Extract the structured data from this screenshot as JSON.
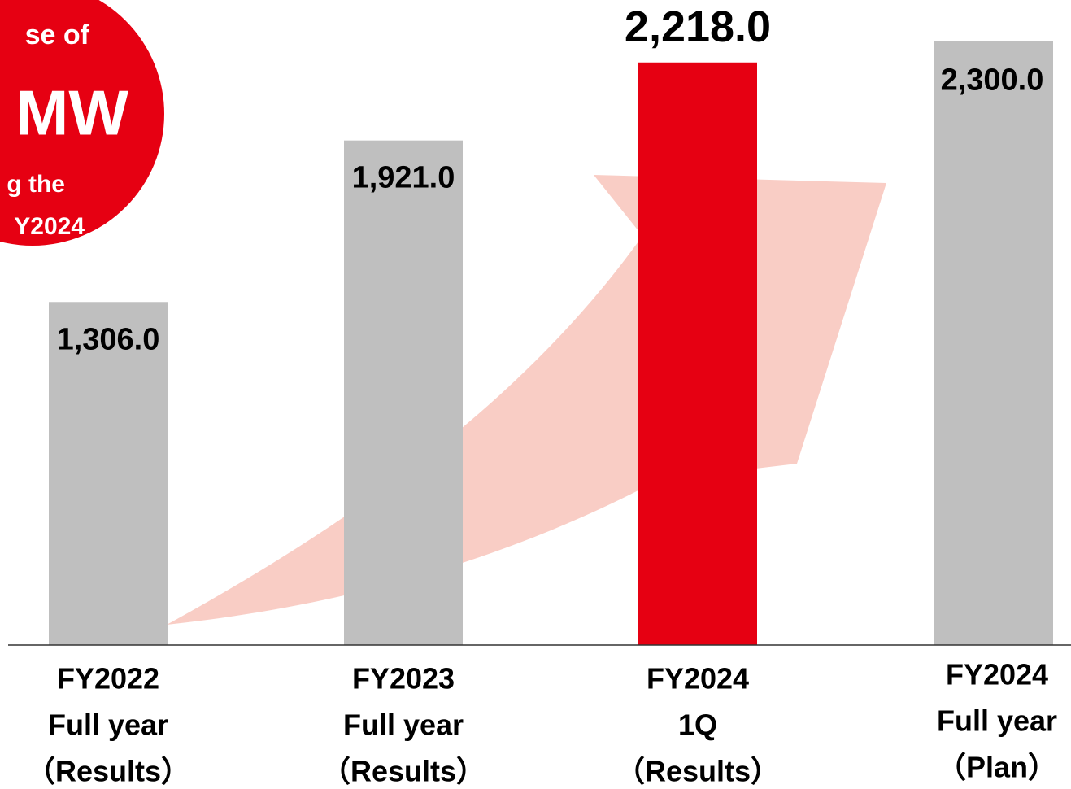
{
  "chart_data": {
    "type": "bar",
    "categories": [
      [
        "FY2022",
        "Full year",
        "（Results）"
      ],
      [
        "FY2023",
        "Full year",
        "（Results）"
      ],
      [
        "FY2024",
        "1Q",
        "（Results）"
      ],
      [
        "FY2024",
        "Full year",
        "（Plan）"
      ]
    ],
    "values": [
      1306.0,
      1921.0,
      2218.0,
      2300.0
    ],
    "value_labels": [
      "1,306.0",
      "1,921.0",
      "2,218.0",
      "2,300.0"
    ],
    "colors": [
      "#bfbfbf",
      "#bfbfbf",
      "#e60012",
      "#bfbfbf"
    ],
    "ylim": [
      0,
      2400
    ],
    "annotations": [
      "se of",
      "MW",
      "g the",
      "Y2024"
    ]
  }
}
